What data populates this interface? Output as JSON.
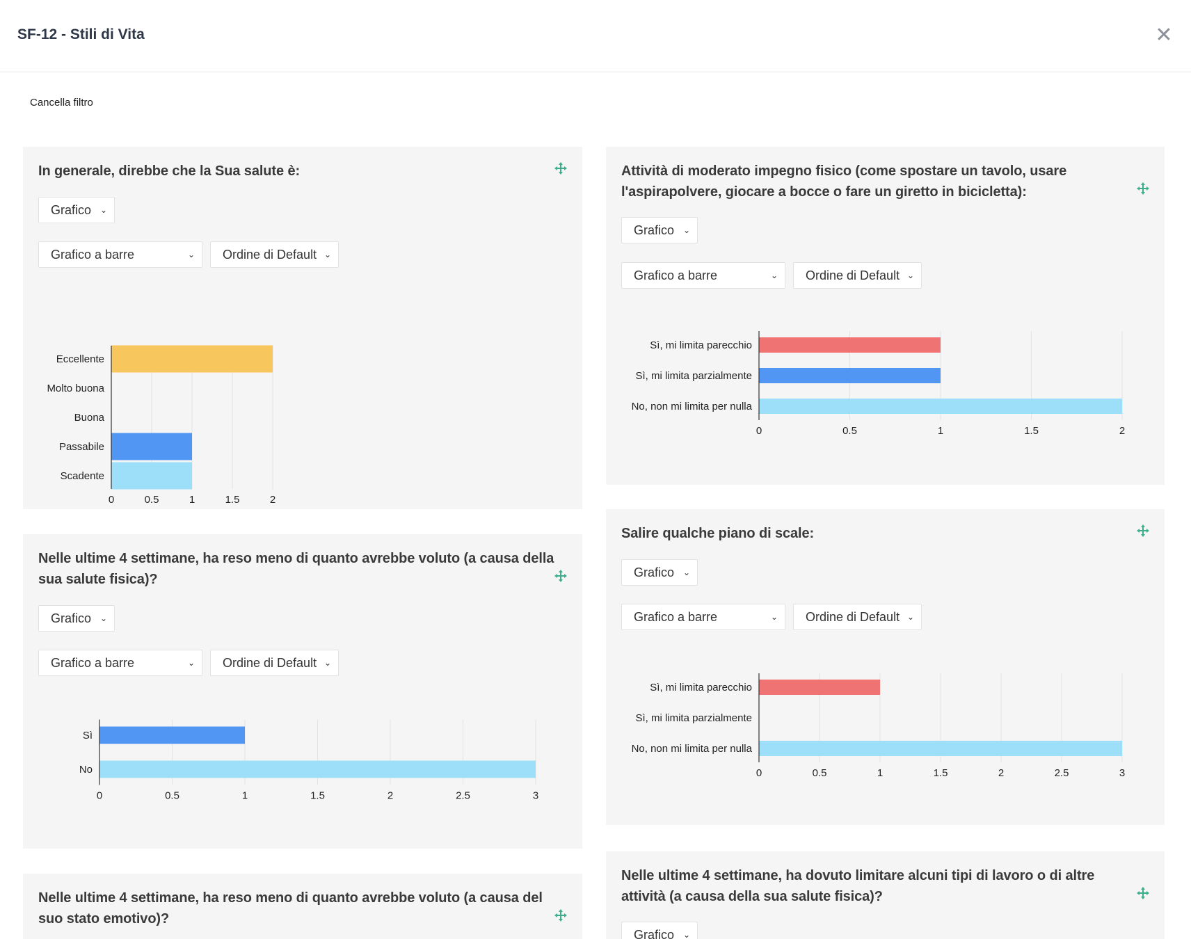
{
  "modal": {
    "title": "SF-12 - Stili di Vita",
    "close_icon": "close-icon"
  },
  "clear_filter": "Cancella filtro",
  "colors": {
    "yellow": "#f7c65d",
    "blue": "#5296f4",
    "lightblue": "#9ddff8",
    "red": "#f07374",
    "card_bg": "#f5f5f5",
    "move_icon": "#3dae8b"
  },
  "cards": [
    {
      "title": "In generale, direbbe che la Sua salute è:",
      "view_select": "Grafico",
      "chart_select": "Grafico a barre",
      "order_select": "Ordine di Default"
    },
    {
      "title": "Attività di moderato impegno fisico (come spostare un tavolo, usare l'aspirapolvere, giocare a bocce o fare un giretto in bicicletta):",
      "view_select": "Grafico",
      "chart_select": "Grafico a barre",
      "order_select": "Ordine di Default"
    },
    {
      "title": "Nelle ultime 4 settimane, ha reso meno di quanto avrebbe voluto (a causa della sua salute fisica)?",
      "view_select": "Grafico",
      "chart_select": "Grafico a barre",
      "order_select": "Ordine di Default"
    },
    {
      "title": "Salire qualche piano di scale:",
      "view_select": "Grafico",
      "chart_select": "Grafico a barre",
      "order_select": "Ordine di Default"
    },
    {
      "title": "Nelle ultime 4 settimane, ha reso meno di quanto avrebbe voluto (a causa del suo stato emotivo)?"
    },
    {
      "title": "Nelle ultime 4 settimane, ha dovuto limitare alcuni tipi di lavoro o di altre attività (a causa della sua salute fisica)?",
      "view_select": "Grafico"
    }
  ],
  "chart_data": [
    {
      "type": "bar",
      "categories": [
        "Eccellente",
        "Molto buona",
        "Buona",
        "Passabile",
        "Scadente"
      ],
      "values": [
        2,
        0,
        0,
        1,
        1
      ],
      "bar_colors": [
        "#f7c65d",
        null,
        null,
        "#5296f4",
        "#9ddff8"
      ],
      "xlim": [
        0,
        2
      ],
      "ticks": [
        0,
        0.5,
        1,
        1.5,
        2
      ],
      "tick_labels": [
        "0",
        "0.5",
        "1",
        "1.5",
        "2"
      ]
    },
    {
      "type": "bar",
      "categories": [
        "Sì, mi limita parecchio",
        "Sì, mi limita parzialmente",
        "No, non mi limita per nulla"
      ],
      "values": [
        1,
        1,
        2
      ],
      "bar_colors": [
        "#f07374",
        "#5296f4",
        "#9ddff8"
      ],
      "xlim": [
        0,
        2
      ],
      "ticks": [
        0,
        0.5,
        1,
        1.5,
        2
      ],
      "tick_labels": [
        "0",
        "0.5",
        "1",
        "1.5",
        "2"
      ]
    },
    {
      "type": "bar",
      "categories": [
        "Sì",
        "No"
      ],
      "values": [
        1,
        3
      ],
      "bar_colors": [
        "#5296f4",
        "#9ddff8"
      ],
      "xlim": [
        0,
        3
      ],
      "ticks": [
        0,
        0.5,
        1,
        1.5,
        2,
        2.5,
        3
      ],
      "tick_labels": [
        "0",
        "0.5",
        "1",
        "1.5",
        "2",
        "2.5",
        "3"
      ]
    },
    {
      "type": "bar",
      "categories": [
        "Sì, mi limita parecchio",
        "Sì, mi limita parzialmente",
        "No, non mi limita per nulla"
      ],
      "values": [
        1,
        0,
        3
      ],
      "bar_colors": [
        "#f07374",
        null,
        "#9ddff8"
      ],
      "xlim": [
        0,
        3
      ],
      "ticks": [
        0,
        0.5,
        1,
        1.5,
        2,
        2.5,
        3
      ],
      "tick_labels": [
        "0",
        "0.5",
        "1",
        "1.5",
        "2",
        "2.5",
        "3"
      ]
    }
  ]
}
